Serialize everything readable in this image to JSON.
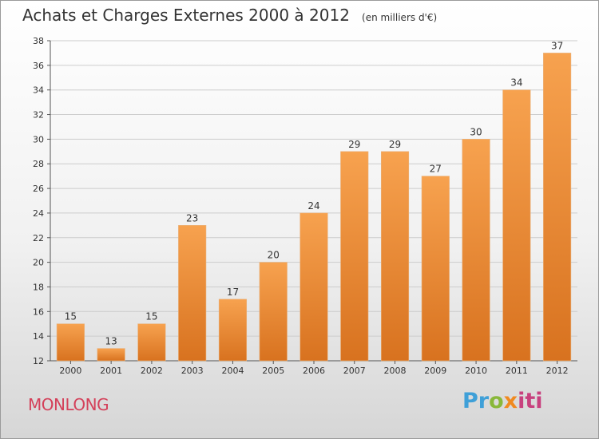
{
  "title": {
    "main": "Achats et Charges Externes 2000 à 2012",
    "unit": "(en milliers d'€)"
  },
  "commune": "MONLONG",
  "brand": {
    "text": "Proxiti"
  },
  "colors": {
    "bar_light": "#f7a24f",
    "bar_dark": "#d8721f",
    "commune": "#d4415a",
    "grid": "#cccccc"
  },
  "chart_data": {
    "type": "bar",
    "categories": [
      "2000",
      "2001",
      "2002",
      "2003",
      "2004",
      "2005",
      "2006",
      "2007",
      "2008",
      "2009",
      "2010",
      "2011",
      "2012"
    ],
    "values": [
      15,
      13,
      15,
      23,
      17,
      20,
      24,
      29,
      29,
      27,
      30,
      34,
      37
    ],
    "ylim": [
      12,
      38
    ],
    "yticks": [
      12,
      14,
      16,
      18,
      20,
      22,
      24,
      26,
      28,
      30,
      32,
      34,
      36,
      38
    ],
    "grid": true,
    "data_labels": true
  }
}
